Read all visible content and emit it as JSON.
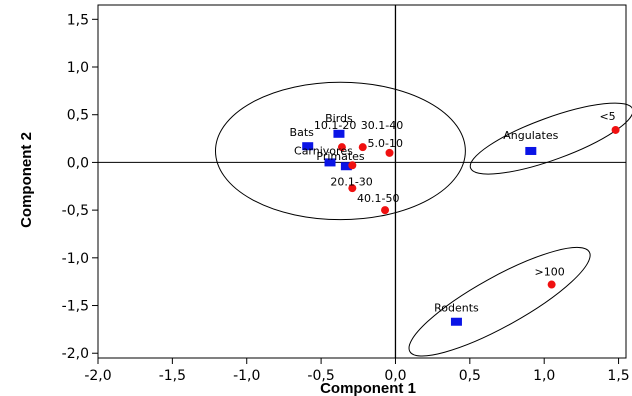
{
  "chart_data": {
    "type": "scatter",
    "title": "",
    "xlabel": "Component 1",
    "ylabel": "Component 2",
    "xlim": [
      -2.0,
      1.55
    ],
    "ylim": [
      -2.05,
      1.65
    ],
    "xticks": [
      "-2,0",
      "-1,5",
      "-1,0",
      "-0,5",
      "0,0",
      "0,5",
      "1,0",
      "1,5"
    ],
    "xtick_values": [
      -2.0,
      -1.5,
      -1.0,
      -0.5,
      0.0,
      0.5,
      1.0,
      1.5
    ],
    "yticks": [
      "1,5",
      "1,0",
      "0,5",
      "0,0",
      "-0,5",
      "-1,0",
      "-1,5",
      "-2,0"
    ],
    "ytick_values": [
      1.5,
      1.0,
      0.5,
      0.0,
      -0.5,
      -1.0,
      -1.5,
      -2.0
    ],
    "reference_lines": {
      "x": 0.0,
      "y": 0.0
    },
    "colors": {
      "square_series": "#0a14e6",
      "circle_series": "#f01010",
      "frame": "#000000"
    },
    "square_points": [
      {
        "label": "Birds",
        "x": -0.38,
        "y": 0.3
      },
      {
        "label": "Bats",
        "x": -0.59,
        "y": 0.17
      },
      {
        "label": "Carnivores",
        "x": -0.44,
        "y": 0.0
      },
      {
        "label": "Primates",
        "x": -0.33,
        "y": -0.04
      },
      {
        "label": "Angulates",
        "x": 0.91,
        "y": 0.12
      },
      {
        "label": "Rodents",
        "x": 0.41,
        "y": -1.67
      }
    ],
    "circle_points": [
      {
        "label": "10.1-20",
        "x": -0.36,
        "y": 0.16
      },
      {
        "label": "30.1-40",
        "x": -0.22,
        "y": 0.16
      },
      {
        "label": "5.0-10",
        "x": -0.04,
        "y": 0.1
      },
      {
        "label": "20.1-30",
        "x": -0.29,
        "y": -0.03
      },
      {
        "label": "",
        "x": -0.29,
        "y": -0.27
      },
      {
        "label": "40.1-50",
        "x": -0.07,
        "y": -0.5
      },
      {
        "label": "<5",
        "x": 1.48,
        "y": 0.34
      },
      {
        "label": ">100",
        "x": 1.05,
        "y": -1.28
      }
    ],
    "annotations": [
      {
        "text": "Birds",
        "x": -0.38,
        "y": 0.3
      },
      {
        "text": "Bats",
        "x": -0.59,
        "y": 0.17
      },
      {
        "text": "10.1-20",
        "x": -0.36,
        "y": 0.16
      },
      {
        "text": "30.1-40",
        "x": -0.22,
        "y": 0.16
      },
      {
        "text": "5.0-10",
        "x": -0.04,
        "y": 0.1
      },
      {
        "text": "Carnivores",
        "x": -0.44,
        "y": 0.0
      },
      {
        "text": "Primates",
        "x": -0.33,
        "y": -0.04
      },
      {
        "text": "20.1-30",
        "x": -0.29,
        "y": -0.03
      },
      {
        "text": "40.1-50",
        "x": -0.07,
        "y": -0.5
      },
      {
        "text": "<5",
        "x": 1.48,
        "y": 0.34
      },
      {
        "text": "Angulates",
        "x": 0.91,
        "y": 0.12
      },
      {
        "text": ">100",
        "x": 1.05,
        "y": -1.28
      },
      {
        "text": "Rodents",
        "x": 0.41,
        "y": -1.67
      }
    ],
    "cluster_ellipses": [
      {
        "cx": -0.37,
        "cy": 0.12,
        "rx": 0.84,
        "ry": 0.72,
        "rotate_deg": 0
      },
      {
        "cx": 1.05,
        "cy": 0.25,
        "rx": 0.58,
        "ry": 0.22,
        "rotate_deg": 20
      },
      {
        "cx": 0.7,
        "cy": -1.46,
        "rx": 0.69,
        "ry": 0.26,
        "rotate_deg": 29
      }
    ],
    "grid": false,
    "legend": "none"
  }
}
